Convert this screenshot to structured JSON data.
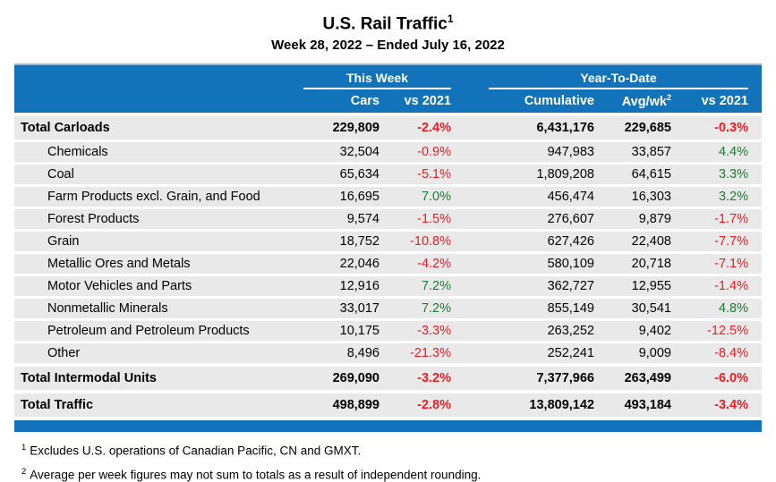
{
  "header": {
    "title": "U.S. Rail Traffic",
    "title_sup": "1",
    "subtitle": "Week 28, 2022 – Ended July 16, 2022"
  },
  "chart_data": {
    "type": "table",
    "title": "U.S. Rail Traffic",
    "subtitle": "Week 28, 2022 – Ended July 16, 2022",
    "group_headers": {
      "this_week": "This Week",
      "year_to_date": "Year-To-Date"
    },
    "columns": {
      "cars": "Cars",
      "week_vs": "vs 2021",
      "cumulative": "Cumulative",
      "avg_wk": "Avg/wk",
      "avg_wk_sup": "2",
      "ytd_vs": "vs 2021"
    },
    "rows": [
      {
        "label": "Total Carloads",
        "total": true,
        "cars": "229,809",
        "week_vs": "-2.4%",
        "cumulative": "6,431,176",
        "avg_wk": "229,685",
        "ytd_vs": "-0.3%"
      },
      {
        "label": "Chemicals",
        "total": false,
        "cars": "32,504",
        "week_vs": "-0.9%",
        "cumulative": "947,983",
        "avg_wk": "33,857",
        "ytd_vs": "4.4%"
      },
      {
        "label": "Coal",
        "total": false,
        "cars": "65,634",
        "week_vs": "-5.1%",
        "cumulative": "1,809,208",
        "avg_wk": "64,615",
        "ytd_vs": "3.3%"
      },
      {
        "label": "Farm Products excl. Grain, and Food",
        "total": false,
        "cars": "16,695",
        "week_vs": "7.0%",
        "cumulative": "456,474",
        "avg_wk": "16,303",
        "ytd_vs": "3.2%"
      },
      {
        "label": "Forest Products",
        "total": false,
        "cars": "9,574",
        "week_vs": "-1.5%",
        "cumulative": "276,607",
        "avg_wk": "9,879",
        "ytd_vs": "-1.7%"
      },
      {
        "label": "Grain",
        "total": false,
        "cars": "18,752",
        "week_vs": "-10.8%",
        "cumulative": "627,426",
        "avg_wk": "22,408",
        "ytd_vs": "-7.7%"
      },
      {
        "label": "Metallic Ores and Metals",
        "total": false,
        "cars": "22,046",
        "week_vs": "-4.2%",
        "cumulative": "580,109",
        "avg_wk": "20,718",
        "ytd_vs": "-7.1%"
      },
      {
        "label": "Motor Vehicles and Parts",
        "total": false,
        "cars": "12,916",
        "week_vs": "7.2%",
        "cumulative": "362,727",
        "avg_wk": "12,955",
        "ytd_vs": "-1.4%"
      },
      {
        "label": "Nonmetallic Minerals",
        "total": false,
        "cars": "33,017",
        "week_vs": "7.2%",
        "cumulative": "855,149",
        "avg_wk": "30,541",
        "ytd_vs": "4.8%"
      },
      {
        "label": "Petroleum and Petroleum Products",
        "total": false,
        "cars": "10,175",
        "week_vs": "-3.3%",
        "cumulative": "263,252",
        "avg_wk": "9,402",
        "ytd_vs": "-12.5%"
      },
      {
        "label": "Other",
        "total": false,
        "cars": "8,496",
        "week_vs": "-21.3%",
        "cumulative": "252,241",
        "avg_wk": "9,009",
        "ytd_vs": "-8.4%"
      },
      {
        "label": "Total Intermodal Units",
        "total": true,
        "cars": "269,090",
        "week_vs": "-3.2%",
        "cumulative": "7,377,966",
        "avg_wk": "263,499",
        "ytd_vs": "-6.0%"
      },
      {
        "label": "Total Traffic",
        "total": true,
        "cars": "498,899",
        "week_vs": "-2.8%",
        "cumulative": "13,809,142",
        "avg_wk": "493,184",
        "ytd_vs": "-3.4%"
      }
    ]
  },
  "footnotes": [
    {
      "sup": "1",
      "text": "Excludes U.S. operations of Canadian Pacific, CN and GMXT."
    },
    {
      "sup": "2",
      "text": "Average per week figures may not sum to totals as a result of independent rounding."
    }
  ],
  "colors": {
    "header_blue": "#1373BA",
    "header_highlight": "#8CBADF",
    "row_gray": "#E9E9E9",
    "negative_red": "#EE1C23",
    "positive_green": "#1F7A33"
  }
}
